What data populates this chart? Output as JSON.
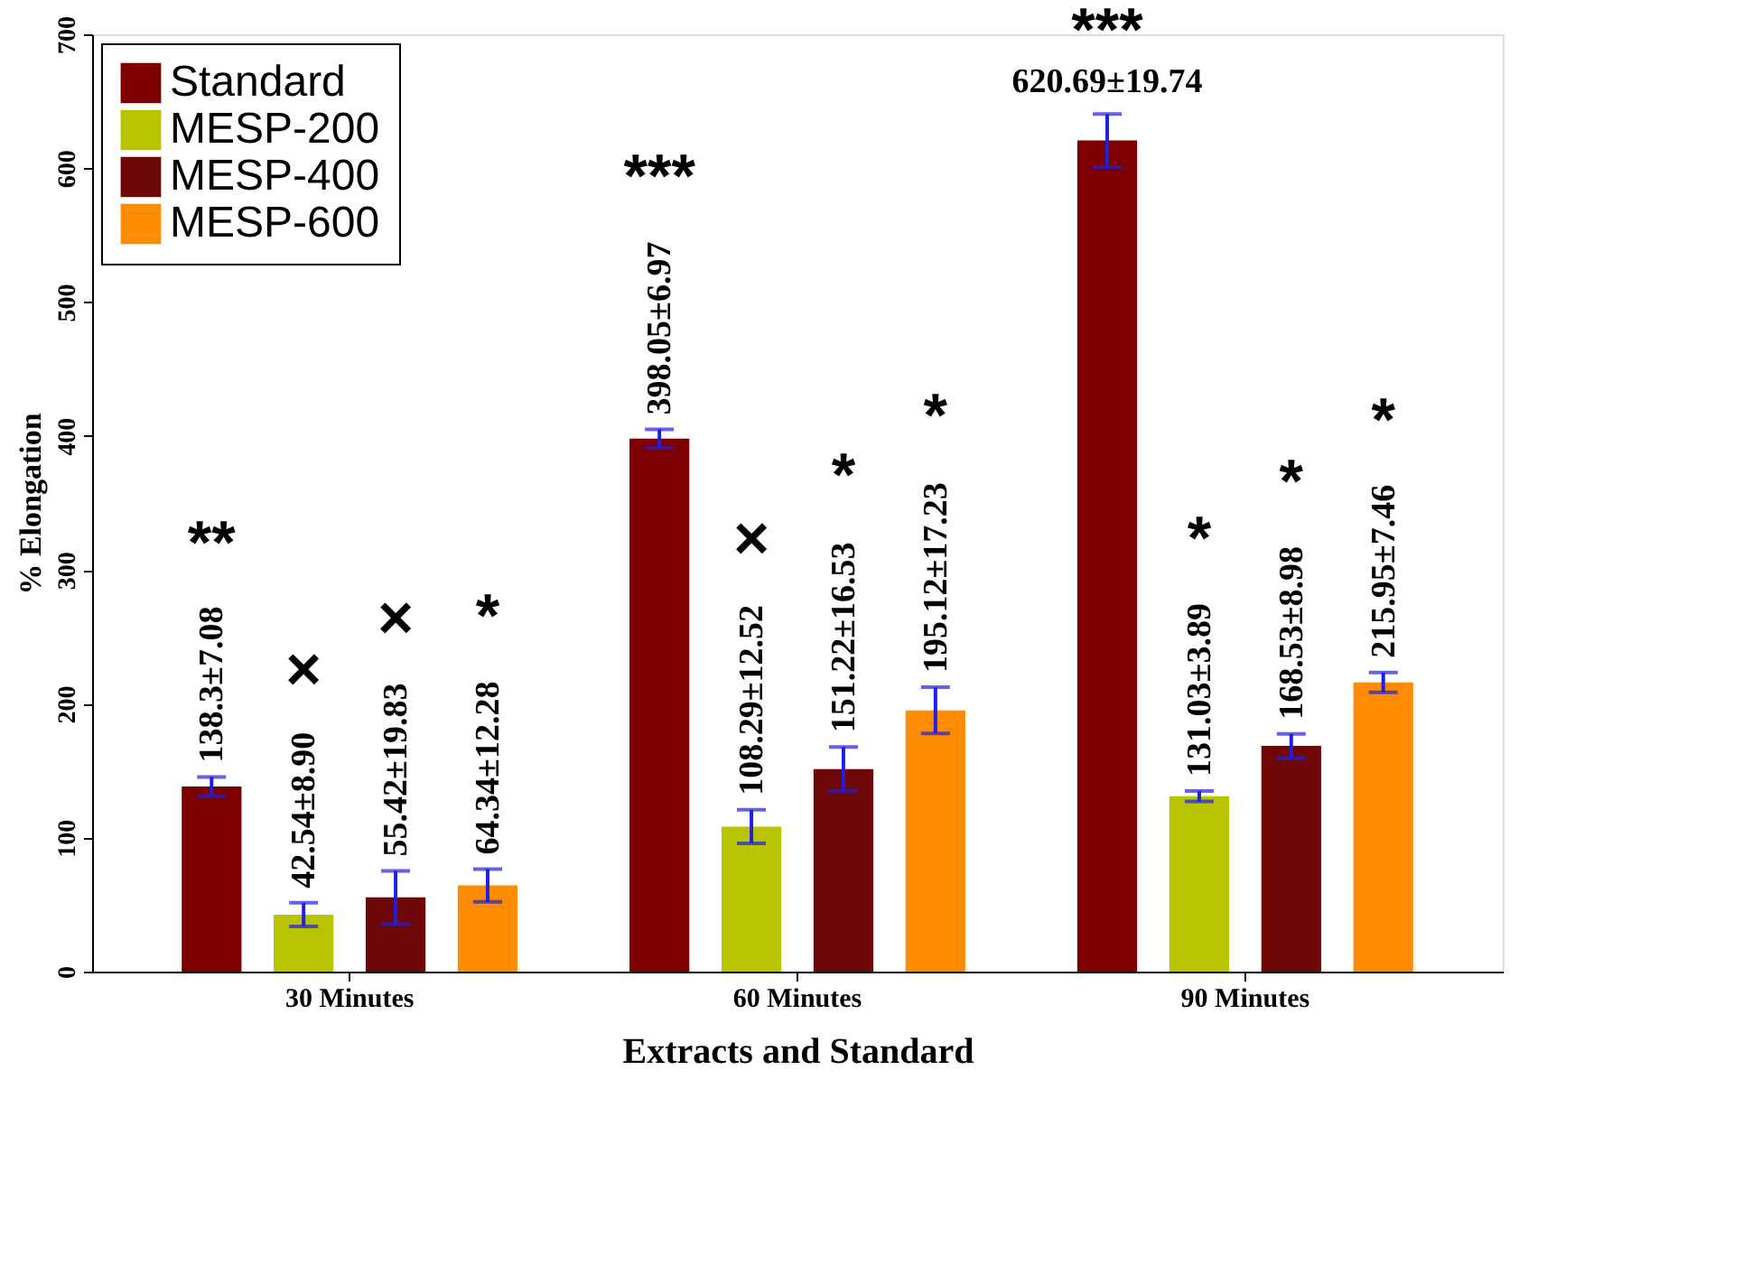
{
  "chart_data": {
    "type": "bar",
    "xlabel": "Extracts and Standard",
    "ylabel": "% Elongation",
    "categories": [
      "30 Minutes",
      "60 Minutes",
      "90 Minutes"
    ],
    "series": [
      {
        "name": "Standard",
        "color": "#7d0000",
        "values": [
          138.3,
          398.05,
          620.69
        ],
        "errors": [
          7.08,
          6.97,
          19.74
        ],
        "value_labels": [
          "138.3±7.08",
          "398.05±6.97",
          "620.69±19.74"
        ]
      },
      {
        "name": "MESP-200",
        "color": "#b8c400",
        "values": [
          42.54,
          108.29,
          131.03
        ],
        "errors": [
          8.9,
          12.52,
          3.89
        ],
        "value_labels": [
          "42.54±8.90",
          "108.29±12.52",
          "131.03±3.89"
        ]
      },
      {
        "name": "MESP-400",
        "color": "#6e0808",
        "values": [
          55.42,
          151.22,
          168.53
        ],
        "errors": [
          19.83,
          16.53,
          8.98
        ],
        "value_labels": [
          "55.42±19.83",
          "151.22±16.53",
          "168.53±8.98"
        ]
      },
      {
        "name": "MESP-600",
        "color": "#ff8c00",
        "values": [
          64.34,
          195.12,
          215.95
        ],
        "errors": [
          12.28,
          17.23,
          7.46
        ],
        "value_labels": [
          "64.34±12.28",
          "195.12±17.23",
          "215.95±7.46"
        ]
      }
    ],
    "ylim": [
      0,
      700
    ],
    "yticks": [
      0,
      100,
      200,
      300,
      400,
      500,
      600,
      700
    ],
    "grid": false,
    "legend": "top left",
    "annotations": [
      "**",
      "×",
      "×",
      "*",
      "***",
      "×",
      "*",
      "*",
      "***",
      "*",
      "*",
      "*"
    ]
  }
}
